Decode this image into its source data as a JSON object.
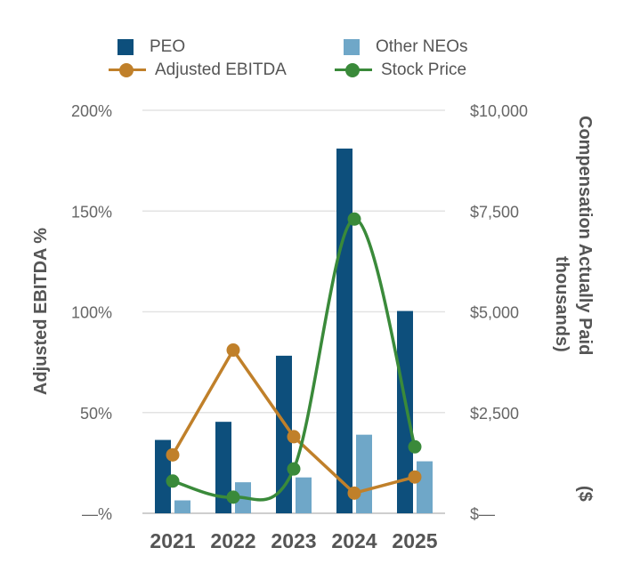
{
  "colors": {
    "peo": "#0d4f7c",
    "other_neos": "#6fa7c8",
    "adjusted_ebitda": "#c0802a",
    "stock_price": "#3a8a3a",
    "grid": "#e3e3e3"
  },
  "chart_data": {
    "type": "bar",
    "categories": [
      "2021",
      "2022",
      "2023",
      "2024",
      "2025"
    ],
    "legend": {
      "placement": "top",
      "items": [
        "PEO",
        "Other NEOs",
        "Adjusted EBITDA",
        "Stock Price"
      ]
    },
    "grid": true,
    "left_axis": {
      "label": "Adjusted EBITDA %",
      "ylim": [
        0,
        200
      ],
      "ticks": [
        0,
        50,
        100,
        150,
        200
      ],
      "tick_labels": [
        "—%",
        "50%",
        "100%",
        "150%",
        "200%"
      ]
    },
    "right_axis": {
      "label_line1": "Compensation Actually Paid",
      "label_line2": "thousands)",
      "label_line3": "($",
      "ylim": [
        0,
        10000
      ],
      "ticks": [
        0,
        2500,
        5000,
        7500,
        10000
      ],
      "tick_labels": [
        "$—",
        "$2,500",
        "$5,000",
        "$7,500",
        "$10,000"
      ]
    },
    "series": [
      {
        "name": "PEO",
        "kind": "bar",
        "axis": "right",
        "values": [
          1820,
          2270,
          3910,
          9050,
          5020
        ]
      },
      {
        "name": "Other NEOs",
        "kind": "bar",
        "axis": "right",
        "values": [
          320,
          770,
          890,
          1950,
          1290
        ]
      },
      {
        "name": "Adjusted EBITDA",
        "kind": "line",
        "axis": "left",
        "values": [
          29,
          81,
          38,
          10,
          18
        ]
      },
      {
        "name": "Stock Price",
        "kind": "line",
        "smooth": true,
        "values": [
          16,
          8,
          22,
          146,
          33
        ]
      }
    ]
  }
}
